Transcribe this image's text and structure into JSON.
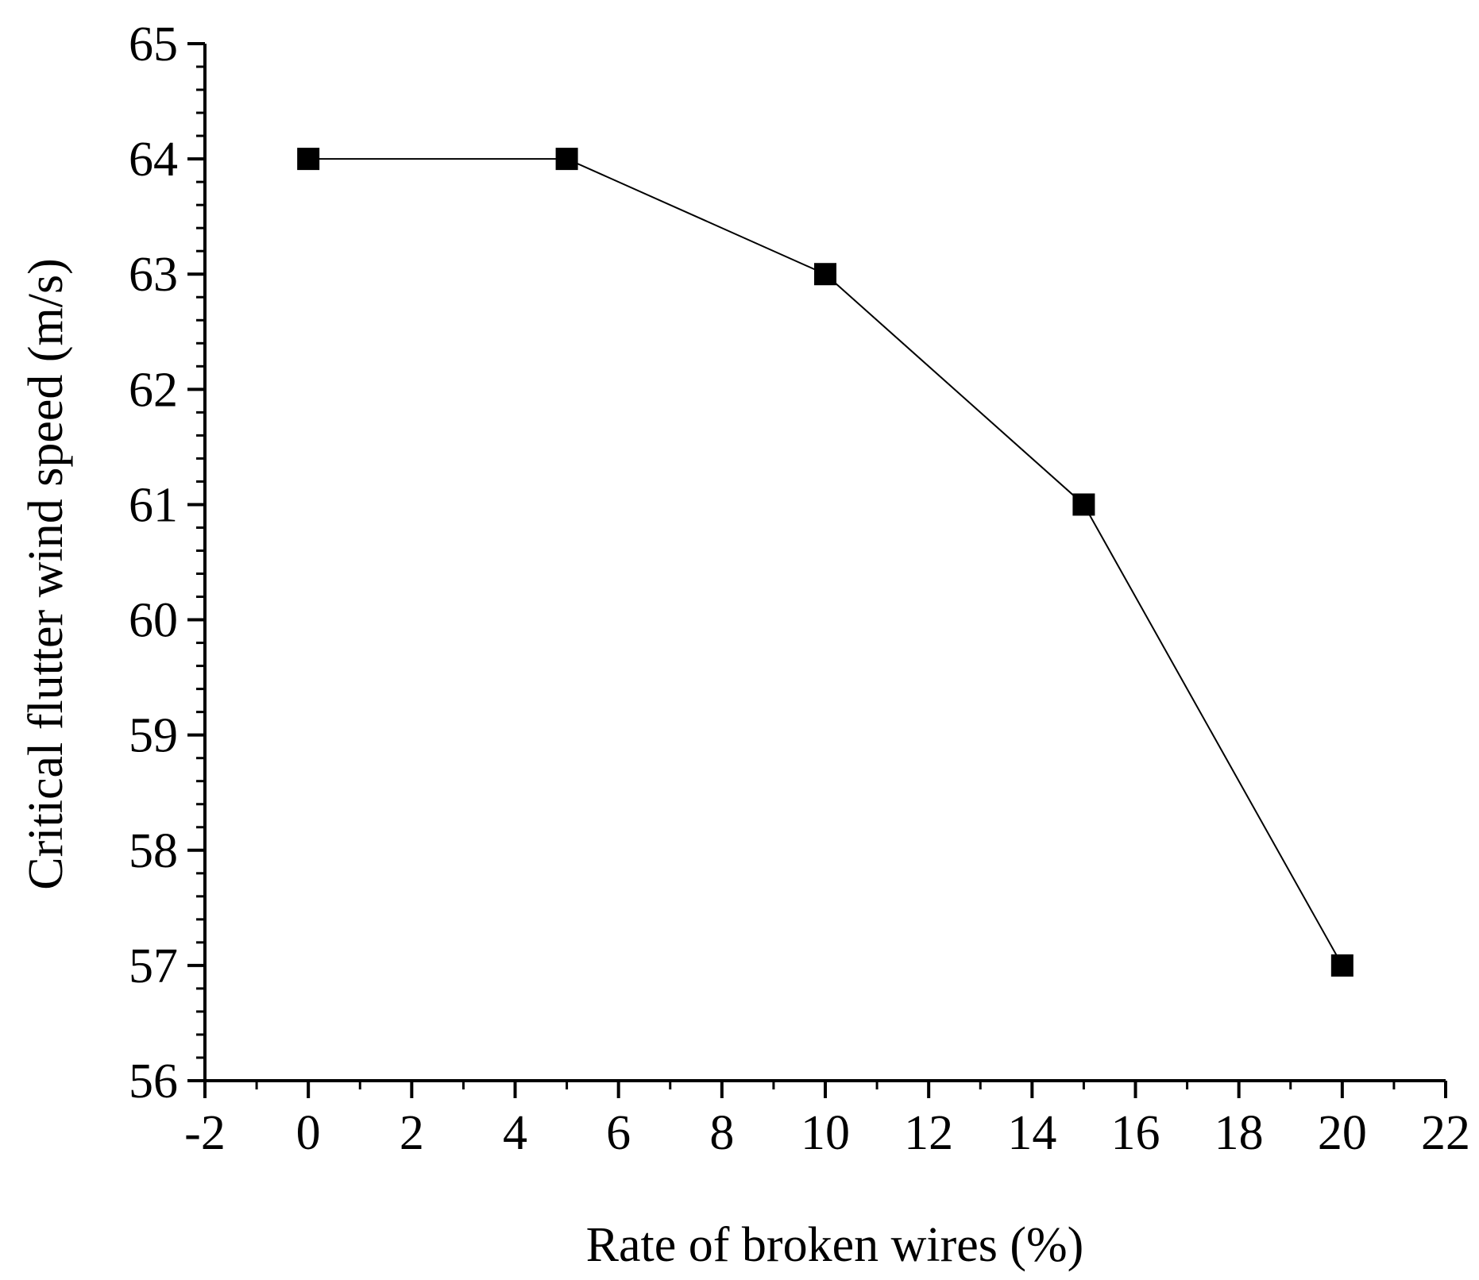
{
  "chart_data": {
    "type": "line",
    "xlabel": "Rate of broken wires (%)",
    "ylabel": "Critical flutter wind speed (m/s)",
    "xlim": [
      -2,
      22
    ],
    "ylim": [
      56,
      65
    ],
    "x_ticks": [
      -2,
      0,
      2,
      4,
      6,
      8,
      10,
      12,
      14,
      16,
      18,
      20,
      22
    ],
    "y_ticks": [
      56,
      57,
      58,
      59,
      60,
      61,
      62,
      63,
      64,
      65
    ],
    "grid": false,
    "marker": "square",
    "line_color": "#000000",
    "marker_color": "#000000",
    "series": [
      {
        "x": [
          0,
          5,
          10,
          15,
          20
        ],
        "y": [
          64,
          64,
          63,
          61,
          57
        ]
      }
    ]
  }
}
